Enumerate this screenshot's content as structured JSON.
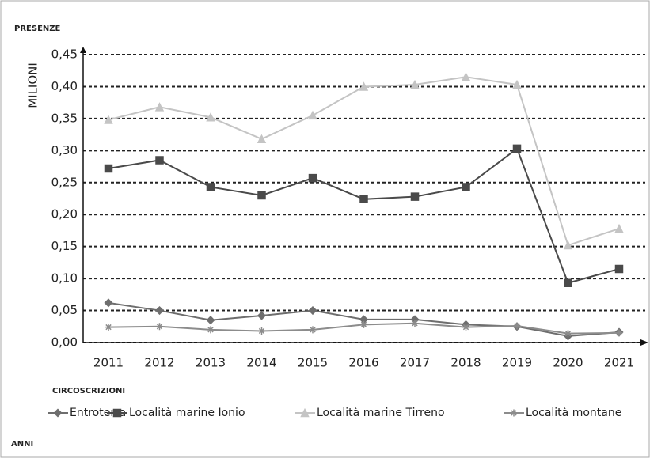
{
  "chart_data": {
    "type": "line",
    "subtitle": "PRESENZE",
    "y_label": "MILIONI",
    "x_label": "ANNI",
    "legend_title": "CIRCOSCRIZIONI",
    "categories": [
      "2011",
      "2012",
      "2013",
      "2014",
      "2015",
      "2016",
      "2017",
      "2018",
      "2019",
      "2020",
      "2021"
    ],
    "series": [
      {
        "name": "Entroterra",
        "color": "#6e6e6e",
        "marker": "diamond",
        "values": [
          0.062,
          0.05,
          0.035,
          0.042,
          0.05,
          0.036,
          0.036,
          0.028,
          0.025,
          0.01,
          0.016
        ]
      },
      {
        "name": "Località marine Ionio",
        "color": "#4a4a4a",
        "marker": "square",
        "values": [
          0.272,
          0.285,
          0.243,
          0.23,
          0.257,
          0.224,
          0.228,
          0.243,
          0.303,
          0.093,
          0.115
        ]
      },
      {
        "name": "Località marine Tirreno",
        "color": "#c4c4c4",
        "marker": "triangle",
        "values": [
          0.348,
          0.368,
          0.352,
          0.318,
          0.355,
          0.4,
          0.403,
          0.415,
          0.403,
          0.152,
          0.178
        ]
      },
      {
        "name": "Località montane",
        "color": "#8c8c8c",
        "marker": "star",
        "values": [
          0.024,
          0.025,
          0.02,
          0.018,
          0.02,
          0.028,
          0.03,
          0.024,
          0.026,
          0.014,
          0.015
        ]
      }
    ],
    "ylim": [
      0,
      0.45
    ],
    "yticks": [
      {
        "value": 0,
        "label": "0,00"
      },
      {
        "value": 0.05,
        "label": "0,05"
      },
      {
        "value": 0.1,
        "label": "0,10"
      },
      {
        "value": 0.15,
        "label": "0,15"
      },
      {
        "value": 0.2,
        "label": "0,20"
      },
      {
        "value": 0.25,
        "label": "0,25"
      },
      {
        "value": 0.3,
        "label": "0,30"
      },
      {
        "value": 0.35,
        "label": "0,35"
      },
      {
        "value": 0.4,
        "label": "0,40"
      },
      {
        "value": 0.45,
        "label": "0,45"
      }
    ],
    "grid": true
  }
}
